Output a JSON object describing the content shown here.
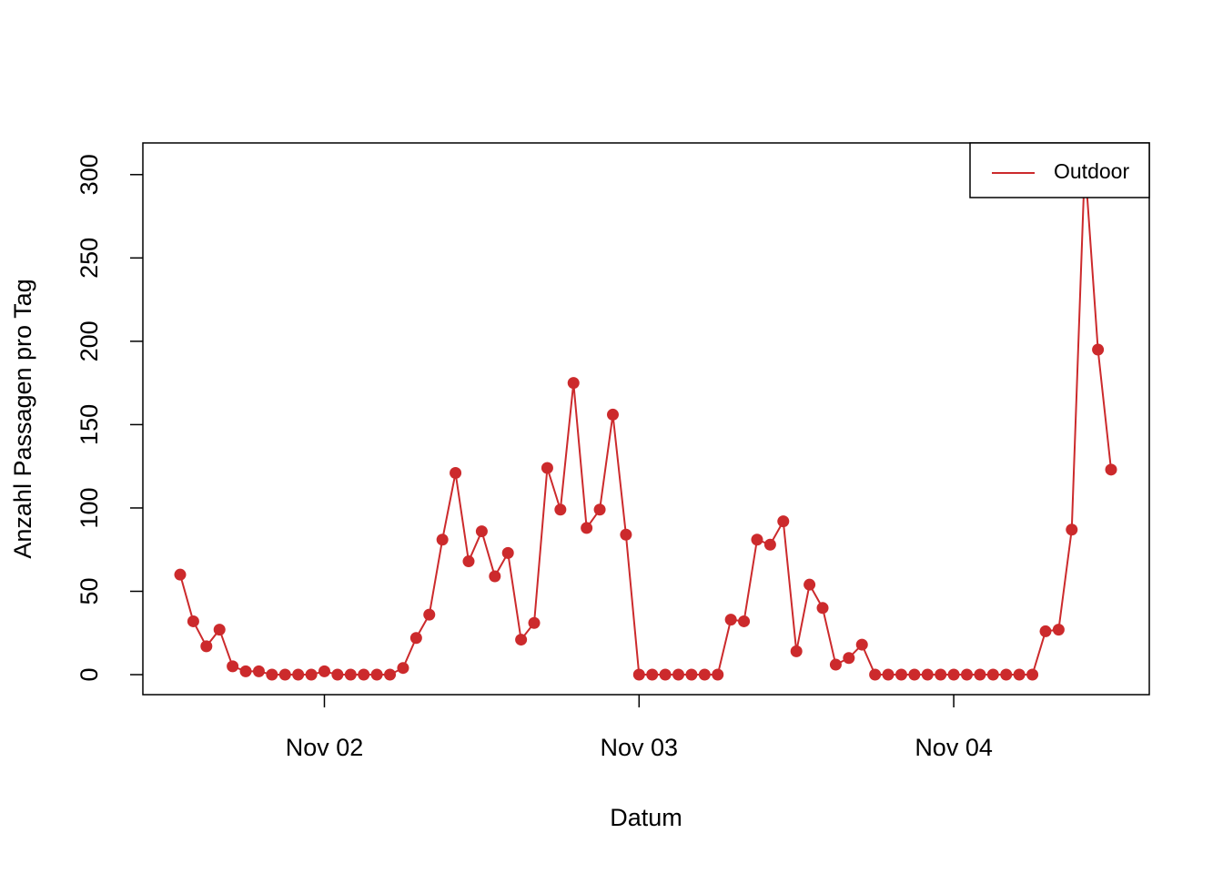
{
  "chart_data": {
    "type": "line",
    "x_label": "Datum",
    "y_label": "Anzahl Passagen pro Tag",
    "categories": [
      null,
      null,
      null,
      null,
      null,
      null,
      null,
      null,
      null,
      null,
      null,
      "Nov 02",
      null,
      null,
      null,
      null,
      null,
      null,
      null,
      null,
      null,
      null,
      null,
      null,
      null,
      null,
      null,
      null,
      null,
      null,
      null,
      null,
      null,
      null,
      null,
      "Nov 03",
      null,
      null,
      null,
      null,
      null,
      null,
      null,
      null,
      null,
      null,
      null,
      null,
      null,
      null,
      null,
      null,
      null,
      null,
      null,
      null,
      null,
      null,
      null,
      "Nov 04",
      null,
      null,
      null,
      null,
      null,
      null,
      null,
      null,
      null,
      null,
      null,
      null
    ],
    "series": [
      {
        "name": "Outdoor",
        "color": "#cc2a2c",
        "values": [
          60,
          32,
          17,
          27,
          5,
          2,
          2,
          0,
          0,
          0,
          0,
          2,
          0,
          0,
          0,
          0,
          0,
          4,
          22,
          36,
          81,
          121,
          68,
          86,
          59,
          73,
          21,
          31,
          124,
          99,
          175,
          88,
          99,
          156,
          84,
          0,
          0,
          0,
          0,
          0,
          0,
          0,
          33,
          32,
          81,
          78,
          92,
          14,
          54,
          40,
          6,
          10,
          18,
          0,
          0,
          0,
          0,
          0,
          0,
          0,
          0,
          0,
          0,
          0,
          0,
          0,
          26,
          27,
          87,
          307,
          195,
          123
        ]
      }
    ],
    "ylim": [
      -12,
      319
    ],
    "yticks": [
      0,
      50,
      100,
      150,
      200,
      250,
      300
    ],
    "legend": "top-right"
  }
}
